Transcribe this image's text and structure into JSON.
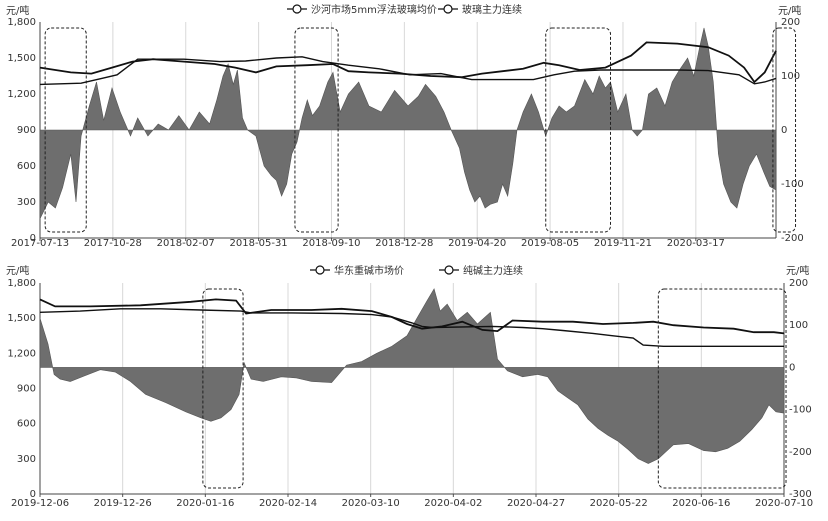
{
  "chart_data": [
    {
      "type": "line",
      "left_unit": "元/吨",
      "right_unit": "元/吨",
      "legend": [
        "沙河市场5mm浮法玻璃均价",
        "玻璃主力连续"
      ],
      "legend_placement": "top-center",
      "yleft_ticks": [
        "1,800",
        "1,500",
        "1,200",
        "900",
        "600",
        "300",
        "0"
      ],
      "yleft_range": [
        0,
        1800
      ],
      "yright_ticks": [
        "200",
        "100",
        "0",
        "-100",
        "-200"
      ],
      "yright_range": [
        -200,
        200
      ],
      "x_ticks": [
        "2017-07-13",
        "2017-10-28",
        "2018-02-07",
        "2018-05-31",
        "2018-09-10",
        "2018-12-28",
        "2019-04-20",
        "2019-08-05",
        "2019-11-21",
        "2020-03-17"
      ],
      "grid": "vertical",
      "area_baseline_left": 900,
      "area_basis": [
        [
          0,
          160
        ],
        [
          8,
          300
        ],
        [
          15,
          250
        ],
        [
          22,
          420
        ],
        [
          30,
          700
        ],
        [
          35,
          300
        ],
        [
          40,
          850
        ],
        [
          48,
          1100
        ],
        [
          55,
          1300
        ],
        [
          62,
          980
        ],
        [
          70,
          1250
        ],
        [
          78,
          1050
        ],
        [
          88,
          850
        ],
        [
          95,
          1000
        ],
        [
          105,
          850
        ],
        [
          115,
          950
        ],
        [
          125,
          900
        ],
        [
          135,
          1020
        ],
        [
          145,
          900
        ],
        [
          155,
          1050
        ],
        [
          165,
          950
        ],
        [
          172,
          1150
        ],
        [
          178,
          1350
        ],
        [
          183,
          1450
        ],
        [
          188,
          1280
        ],
        [
          192,
          1400
        ],
        [
          197,
          1000
        ],
        [
          202,
          900
        ],
        [
          210,
          850
        ],
        [
          218,
          600
        ],
        [
          225,
          520
        ],
        [
          230,
          480
        ],
        [
          235,
          350
        ],
        [
          240,
          450
        ],
        [
          245,
          700
        ],
        [
          250,
          800
        ],
        [
          255,
          1000
        ],
        [
          260,
          1150
        ],
        [
          265,
          1020
        ],
        [
          272,
          1100
        ],
        [
          280,
          1300
        ],
        [
          285,
          1380
        ],
        [
          292,
          1050
        ],
        [
          300,
          1200
        ],
        [
          310,
          1300
        ],
        [
          320,
          1100
        ],
        [
          332,
          1050
        ],
        [
          345,
          1230
        ],
        [
          358,
          1100
        ],
        [
          368,
          1180
        ],
        [
          375,
          1280
        ],
        [
          385,
          1180
        ],
        [
          393,
          1050
        ],
        [
          400,
          900
        ],
        [
          408,
          750
        ],
        [
          413,
          550
        ],
        [
          418,
          400
        ],
        [
          423,
          300
        ],
        [
          428,
          350
        ],
        [
          433,
          250
        ],
        [
          438,
          280
        ],
        [
          445,
          300
        ],
        [
          450,
          450
        ],
        [
          455,
          350
        ],
        [
          460,
          620
        ],
        [
          464,
          900
        ],
        [
          470,
          1050
        ],
        [
          478,
          1200
        ],
        [
          485,
          1050
        ],
        [
          492,
          850
        ],
        [
          498,
          1000
        ],
        [
          505,
          1100
        ],
        [
          512,
          1050
        ],
        [
          520,
          1100
        ],
        [
          530,
          1320
        ],
        [
          538,
          1200
        ],
        [
          544,
          1350
        ],
        [
          550,
          1250
        ],
        [
          555,
          1300
        ],
        [
          562,
          1050
        ],
        [
          570,
          1200
        ],
        [
          576,
          900
        ],
        [
          581,
          850
        ],
        [
          586,
          900
        ],
        [
          592,
          1200
        ],
        [
          600,
          1250
        ],
        [
          608,
          1100
        ],
        [
          615,
          1300
        ],
        [
          622,
          1400
        ],
        [
          630,
          1500
        ],
        [
          636,
          1350
        ],
        [
          642,
          1600
        ],
        [
          646,
          1750
        ],
        [
          650,
          1600
        ],
        [
          655,
          1300
        ],
        [
          660,
          700
        ],
        [
          665,
          450
        ],
        [
          672,
          300
        ],
        [
          678,
          250
        ],
        [
          684,
          450
        ],
        [
          690,
          600
        ],
        [
          697,
          700
        ],
        [
          704,
          550
        ],
        [
          710,
          430
        ],
        [
          716,
          400
        ]
      ],
      "series": [
        {
          "name": "沙河市场5mm浮法玻璃均价",
          "axis": "left",
          "points": [
            [
              0,
              1280
            ],
            [
              40,
              1290
            ],
            [
              60,
              1330
            ],
            [
              75,
              1360
            ],
            [
              95,
              1490
            ],
            [
              140,
              1490
            ],
            [
              175,
              1470
            ],
            [
              200,
              1475
            ],
            [
              230,
              1500
            ],
            [
              255,
              1510
            ],
            [
              275,
              1470
            ],
            [
              300,
              1440
            ],
            [
              330,
              1410
            ],
            [
              360,
              1360
            ],
            [
              390,
              1370
            ],
            [
              420,
              1320
            ],
            [
              450,
              1320
            ],
            [
              480,
              1320
            ],
            [
              500,
              1360
            ],
            [
              520,
              1390
            ],
            [
              545,
              1400
            ],
            [
              575,
              1400
            ],
            [
              595,
              1400
            ],
            [
              620,
              1400
            ],
            [
              650,
              1395
            ],
            [
              680,
              1360
            ],
            [
              695,
              1285
            ],
            [
              705,
              1300
            ],
            [
              716,
              1330
            ]
          ]
        },
        {
          "name": "玻璃主力连续",
          "axis": "left",
          "points": [
            [
              0,
              1420
            ],
            [
              30,
              1380
            ],
            [
              50,
              1370
            ],
            [
              70,
              1420
            ],
            [
              90,
              1470
            ],
            [
              110,
              1490
            ],
            [
              140,
              1470
            ],
            [
              170,
              1450
            ],
            [
              190,
              1420
            ],
            [
              210,
              1380
            ],
            [
              230,
              1430
            ],
            [
              260,
              1440
            ],
            [
              285,
              1450
            ],
            [
              300,
              1390
            ],
            [
              320,
              1380
            ],
            [
              350,
              1370
            ],
            [
              380,
              1350
            ],
            [
              410,
              1340
            ],
            [
              430,
              1370
            ],
            [
              450,
              1390
            ],
            [
              470,
              1410
            ],
            [
              490,
              1460
            ],
            [
              505,
              1440
            ],
            [
              525,
              1400
            ],
            [
              550,
              1420
            ],
            [
              575,
              1520
            ],
            [
              590,
              1630
            ],
            [
              620,
              1620
            ],
            [
              650,
              1590
            ],
            [
              670,
              1520
            ],
            [
              685,
              1420
            ],
            [
              695,
              1300
            ],
            [
              705,
              1380
            ],
            [
              716,
              1560
            ]
          ]
        }
      ],
      "dashed_boxes": [
        [
          5,
          45
        ],
        [
          248,
          290
        ],
        [
          492,
          555
        ],
        [
          713,
          735
        ]
      ]
    },
    {
      "type": "line",
      "left_unit": "元/吨",
      "right_unit": "元/吨",
      "legend": [
        "华东重碱市场价",
        "纯碱主力连续"
      ],
      "legend_placement": "top-center",
      "yleft_ticks": [
        "1,800",
        "1,500",
        "1,200",
        "900",
        "600",
        "300",
        "0"
      ],
      "yleft_range": [
        0,
        1800
      ],
      "yright_ticks": [
        "200",
        "100",
        "0",
        "-100",
        "-200",
        "-300"
      ],
      "yright_range": [
        -300,
        200
      ],
      "x_ticks": [
        "2019-12-06",
        "2019-12-26",
        "2020-01-16",
        "2020-02-14",
        "2020-03-10",
        "2020-04-02",
        "2020-04-27",
        "2020-05-22",
        "2020-06-16",
        "2020-07-10"
      ],
      "grid": "vertical",
      "area_baseline_left": 1080,
      "area_basis": [
        [
          0,
          1500
        ],
        [
          8,
          1280
        ],
        [
          14,
          1020
        ],
        [
          20,
          980
        ],
        [
          30,
          960
        ],
        [
          45,
          1010
        ],
        [
          60,
          1060
        ],
        [
          75,
          1040
        ],
        [
          90,
          960
        ],
        [
          105,
          850
        ],
        [
          125,
          780
        ],
        [
          145,
          700
        ],
        [
          160,
          650
        ],
        [
          170,
          620
        ],
        [
          180,
          650
        ],
        [
          190,
          720
        ],
        [
          198,
          850
        ],
        [
          203,
          1120
        ],
        [
          210,
          980
        ],
        [
          222,
          960
        ],
        [
          240,
          1000
        ],
        [
          255,
          990
        ],
        [
          270,
          960
        ],
        [
          290,
          950
        ],
        [
          305,
          1100
        ],
        [
          320,
          1130
        ],
        [
          335,
          1200
        ],
        [
          350,
          1260
        ],
        [
          365,
          1350
        ],
        [
          375,
          1500
        ],
        [
          385,
          1650
        ],
        [
          392,
          1750
        ],
        [
          398,
          1560
        ],
        [
          405,
          1620
        ],
        [
          415,
          1480
        ],
        [
          425,
          1550
        ],
        [
          435,
          1450
        ],
        [
          448,
          1550
        ],
        [
          455,
          1150
        ],
        [
          465,
          1050
        ],
        [
          480,
          1000
        ],
        [
          495,
          1020
        ],
        [
          505,
          1000
        ],
        [
          515,
          880
        ],
        [
          525,
          820
        ],
        [
          535,
          760
        ],
        [
          545,
          640
        ],
        [
          555,
          560
        ],
        [
          565,
          500
        ],
        [
          575,
          450
        ],
        [
          585,
          380
        ],
        [
          595,
          300
        ],
        [
          605,
          260
        ],
        [
          615,
          300
        ],
        [
          630,
          420
        ],
        [
          645,
          430
        ],
        [
          660,
          370
        ],
        [
          672,
          360
        ],
        [
          684,
          390
        ],
        [
          696,
          450
        ],
        [
          708,
          550
        ],
        [
          718,
          650
        ],
        [
          725,
          760
        ],
        [
          732,
          700
        ],
        [
          740,
          690
        ]
      ],
      "series": [
        {
          "name": "华东重碱市场价",
          "axis": "left",
          "points": [
            [
              0,
              1550
            ],
            [
              40,
              1560
            ],
            [
              80,
              1580
            ],
            [
              120,
              1580
            ],
            [
              160,
              1570
            ],
            [
              200,
              1560
            ],
            [
              210,
              1545
            ],
            [
              250,
              1545
            ],
            [
              300,
              1540
            ],
            [
              330,
              1530
            ],
            [
              350,
              1510
            ],
            [
              370,
              1460
            ],
            [
              380,
              1430
            ],
            [
              390,
              1420
            ],
            [
              450,
              1430
            ],
            [
              480,
              1420
            ],
            [
              500,
              1410
            ],
            [
              520,
              1395
            ],
            [
              550,
              1370
            ],
            [
              570,
              1350
            ],
            [
              590,
              1330
            ],
            [
              600,
              1270
            ],
            [
              620,
              1260
            ],
            [
              650,
              1260
            ],
            [
              680,
              1260
            ],
            [
              700,
              1260
            ],
            [
              720,
              1260
            ],
            [
              740,
              1260
            ]
          ]
        },
        {
          "name": "纯碱主力连续",
          "axis": "left",
          "points": [
            [
              0,
              1660
            ],
            [
              15,
              1600
            ],
            [
              50,
              1600
            ],
            [
              100,
              1610
            ],
            [
              150,
              1640
            ],
            [
              175,
              1660
            ],
            [
              195,
              1650
            ],
            [
              205,
              1540
            ],
            [
              230,
              1570
            ],
            [
              270,
              1570
            ],
            [
              300,
              1580
            ],
            [
              330,
              1560
            ],
            [
              350,
              1510
            ],
            [
              365,
              1450
            ],
            [
              380,
              1410
            ],
            [
              400,
              1430
            ],
            [
              420,
              1470
            ],
            [
              440,
              1400
            ],
            [
              455,
              1390
            ],
            [
              470,
              1480
            ],
            [
              500,
              1470
            ],
            [
              530,
              1470
            ],
            [
              560,
              1450
            ],
            [
              590,
              1460
            ],
            [
              610,
              1470
            ],
            [
              630,
              1440
            ],
            [
              660,
              1420
            ],
            [
              690,
              1410
            ],
            [
              710,
              1380
            ],
            [
              730,
              1380
            ],
            [
              740,
              1370
            ]
          ]
        }
      ],
      "dashed_boxes": [
        [
          162,
          202
        ],
        [
          615,
          742
        ]
      ]
    }
  ]
}
